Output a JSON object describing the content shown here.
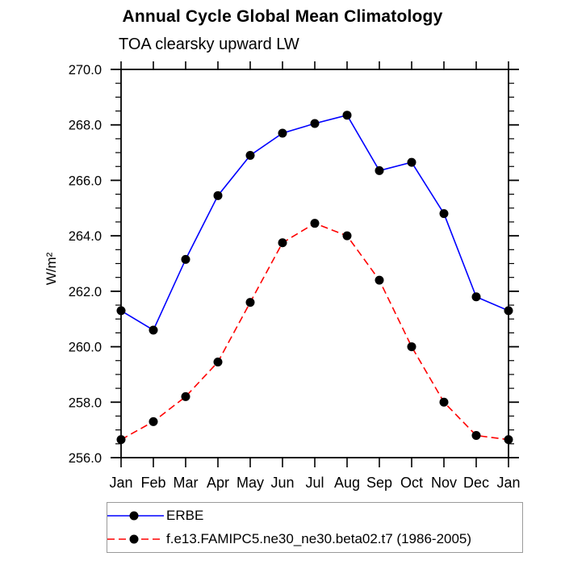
{
  "header": {
    "title": "Annual Cycle Global Mean Climatology",
    "subtitle": "TOA clearsky upward LW"
  },
  "chart_data": {
    "type": "line",
    "x_categories": [
      "Jan",
      "Feb",
      "Mar",
      "Apr",
      "May",
      "Jun",
      "Jul",
      "Aug",
      "Sep",
      "Oct",
      "Nov",
      "Dec",
      "Jan"
    ],
    "ylabel": "W/m²",
    "ylim": [
      256.0,
      270.0
    ],
    "ytick_major_interval": 2.0,
    "ytick_minor_interval": 0.5,
    "ytick_labels": [
      "256.0",
      "258.0",
      "260.0",
      "262.0",
      "264.0",
      "266.0",
      "268.0",
      "270.0"
    ],
    "grid": false,
    "legend_position": "bottom-left-boxed",
    "axis_color": "#000000",
    "marker_color": "#000000",
    "series": [
      {
        "name": "ERBE",
        "color": "#0000ff",
        "style": "solid",
        "marker": "filled-circle",
        "values": [
          261.3,
          260.6,
          263.15,
          265.45,
          266.9,
          267.7,
          268.05,
          268.35,
          266.35,
          266.65,
          264.8,
          261.8,
          261.3
        ]
      },
      {
        "name": "f.e13.FAMIPC5.ne30_ne30.beta02.t7 (1986-2005)",
        "color": "#ff0000",
        "style": "dashed",
        "marker": "filled-circle",
        "values": [
          256.65,
          257.3,
          258.2,
          259.45,
          261.6,
          263.75,
          264.45,
          264.0,
          262.4,
          260.0,
          258.0,
          256.8,
          256.65
        ]
      }
    ]
  }
}
